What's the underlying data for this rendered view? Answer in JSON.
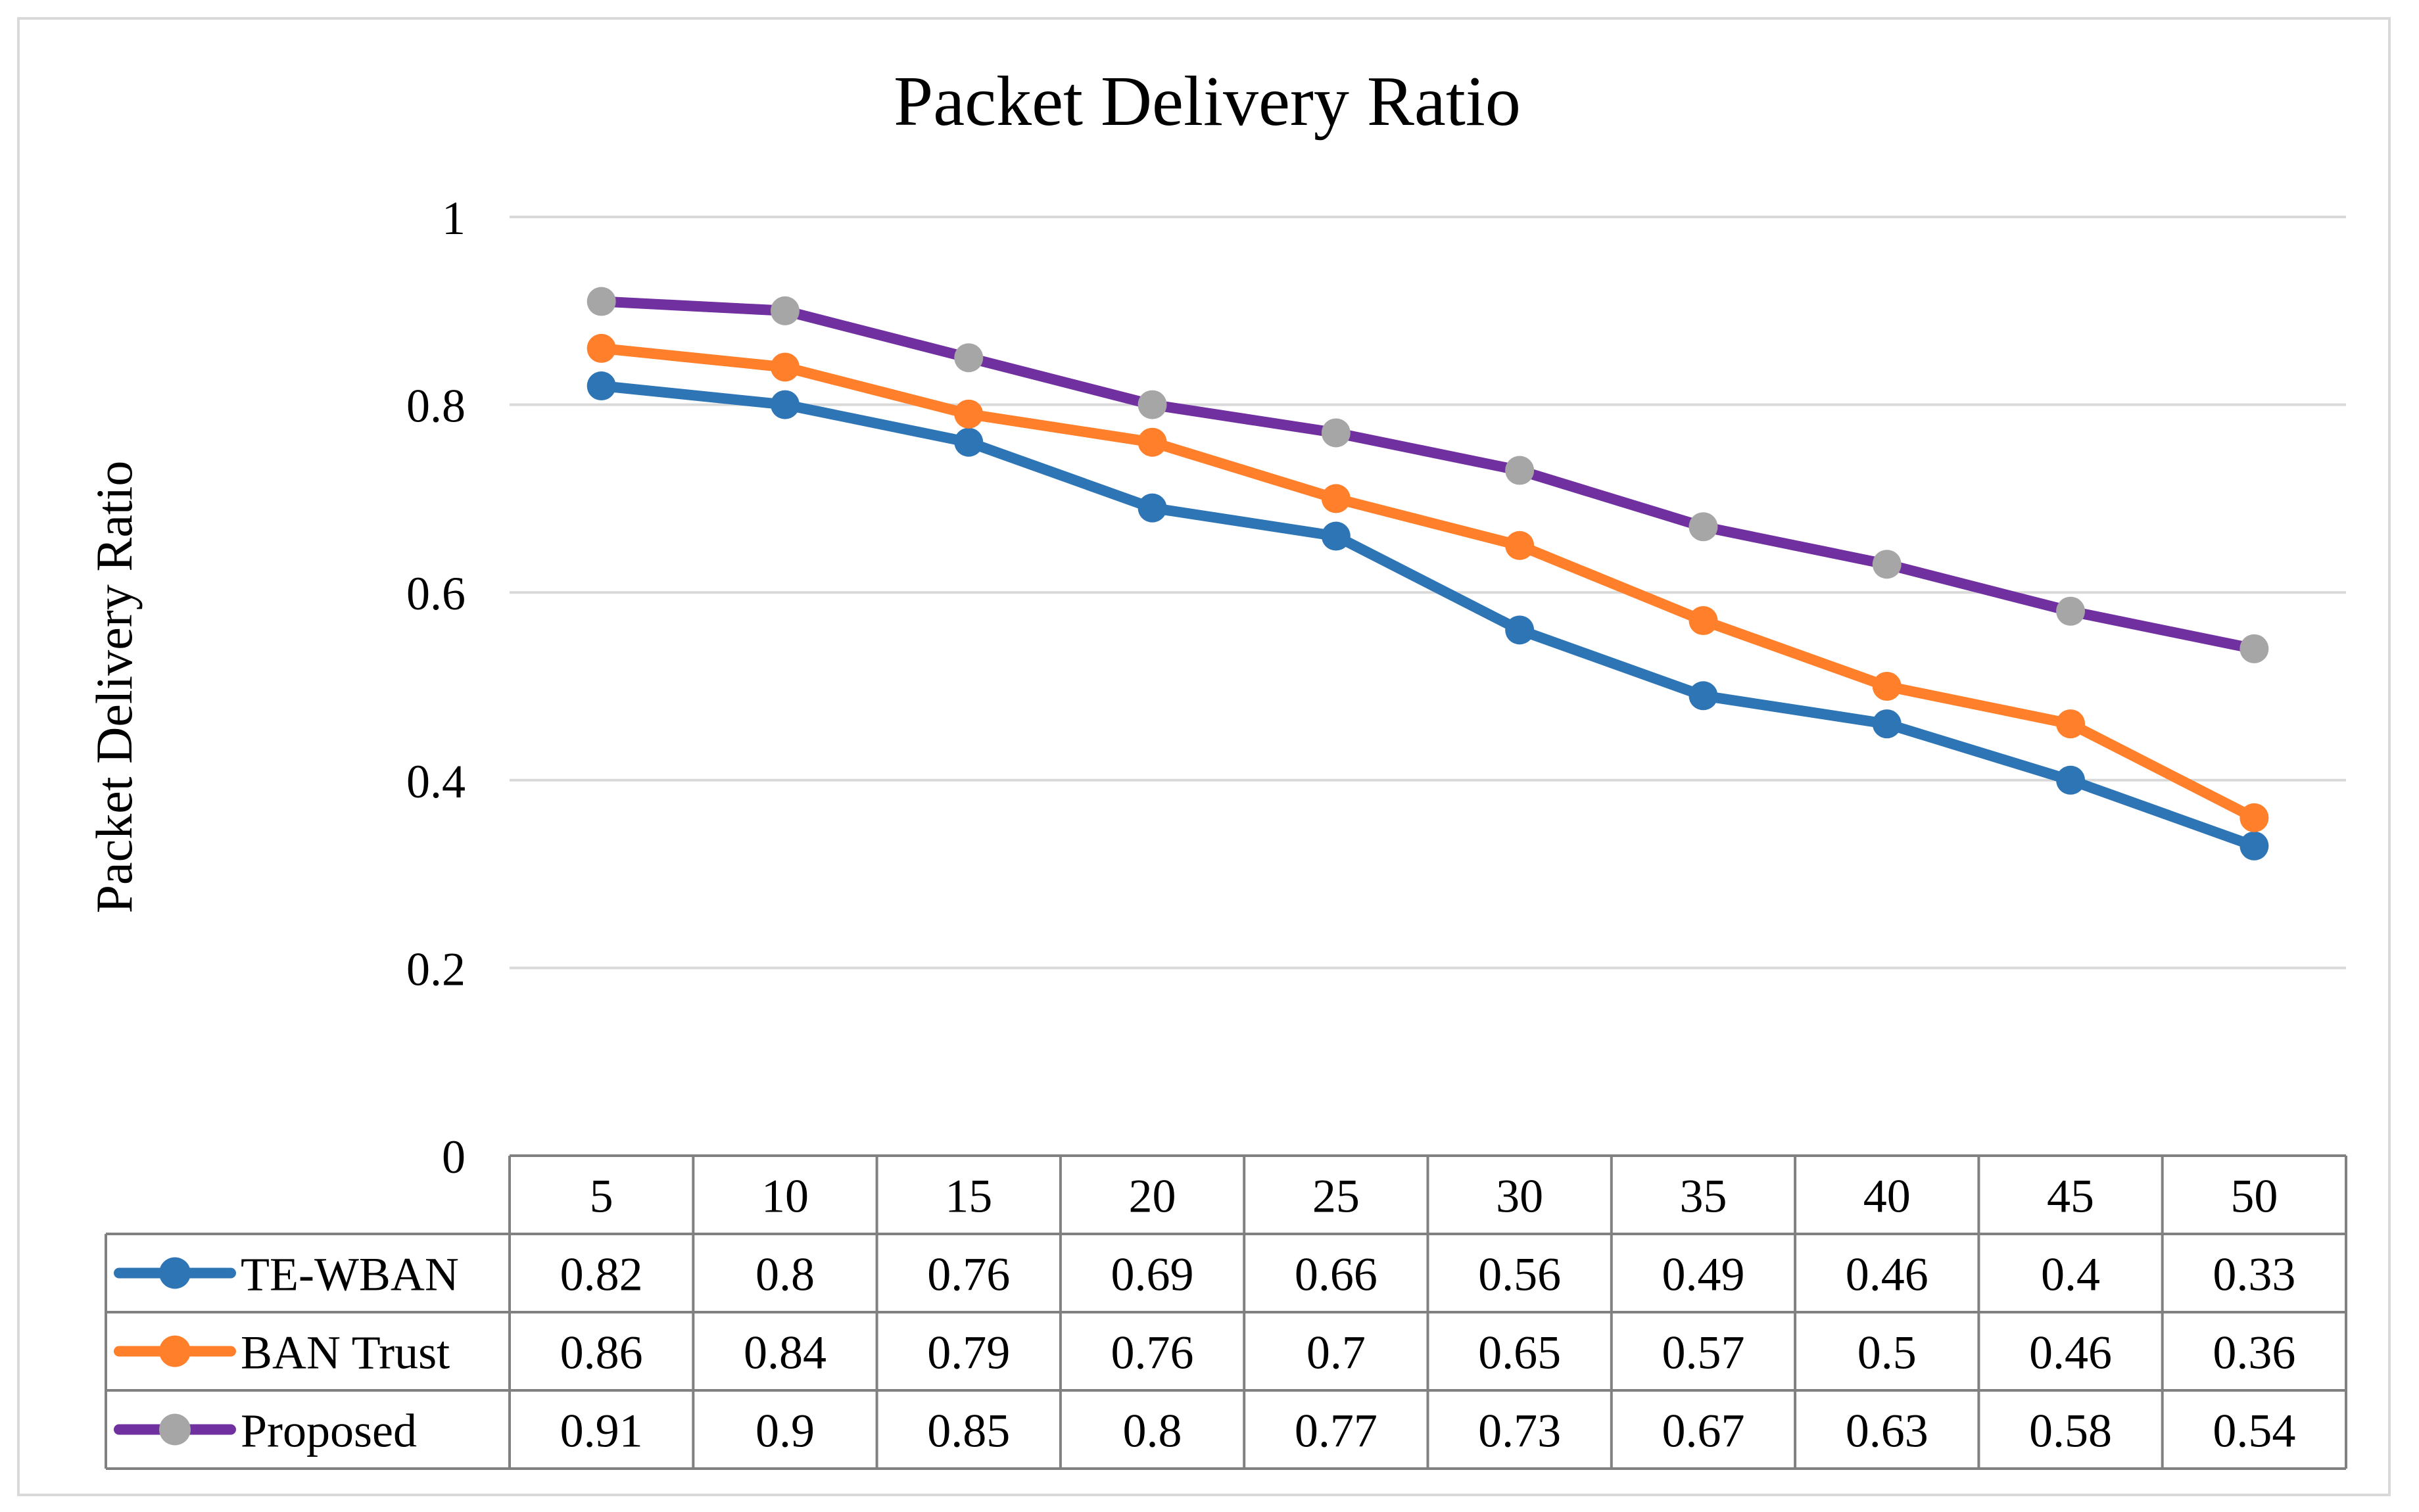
{
  "chart_data": {
    "type": "line",
    "title": "Packet Delivery Ratio",
    "xlabel": "",
    "ylabel": "Packet Delivery Ratio",
    "ylim": [
      0,
      1
    ],
    "yticks": [
      "0",
      "0.2",
      "0.4",
      "0.6",
      "0.8",
      "1"
    ],
    "yticks_values": [
      0,
      0.2,
      0.4,
      0.6,
      0.8,
      1
    ],
    "categories": [
      "5",
      "10",
      "15",
      "20",
      "25",
      "30",
      "35",
      "40",
      "45",
      "50"
    ],
    "grid": true,
    "legend": "data-table-left",
    "series": [
      {
        "name": "TE-WBAN",
        "line_color": "#2E75B6",
        "marker_color": "#2E75B6",
        "values": [
          0.82,
          0.8,
          0.76,
          0.69,
          0.66,
          0.56,
          0.49,
          0.46,
          0.4,
          0.33
        ],
        "labels": [
          "0.82",
          "0.8",
          "0.76",
          "0.69",
          "0.66",
          "0.56",
          "0.49",
          "0.46",
          "0.4",
          "0.33"
        ]
      },
      {
        "name": "BAN Trust",
        "line_color": "#FF7F2A",
        "marker_color": "#FF7F2A",
        "values": [
          0.86,
          0.84,
          0.79,
          0.76,
          0.7,
          0.65,
          0.57,
          0.5,
          0.46,
          0.36
        ],
        "labels": [
          "0.86",
          "0.84",
          "0.79",
          "0.76",
          "0.7",
          "0.65",
          "0.57",
          "0.5",
          "0.46",
          "0.36"
        ]
      },
      {
        "name": "Proposed",
        "line_color": "#7030A0",
        "marker_color": "#A6A6A6",
        "values": [
          0.91,
          0.9,
          0.85,
          0.8,
          0.77,
          0.73,
          0.67,
          0.63,
          0.58,
          0.54
        ],
        "labels": [
          "0.91",
          "0.9",
          "0.85",
          "0.8",
          "0.77",
          "0.73",
          "0.67",
          "0.63",
          "0.58",
          "0.54"
        ]
      }
    ]
  }
}
